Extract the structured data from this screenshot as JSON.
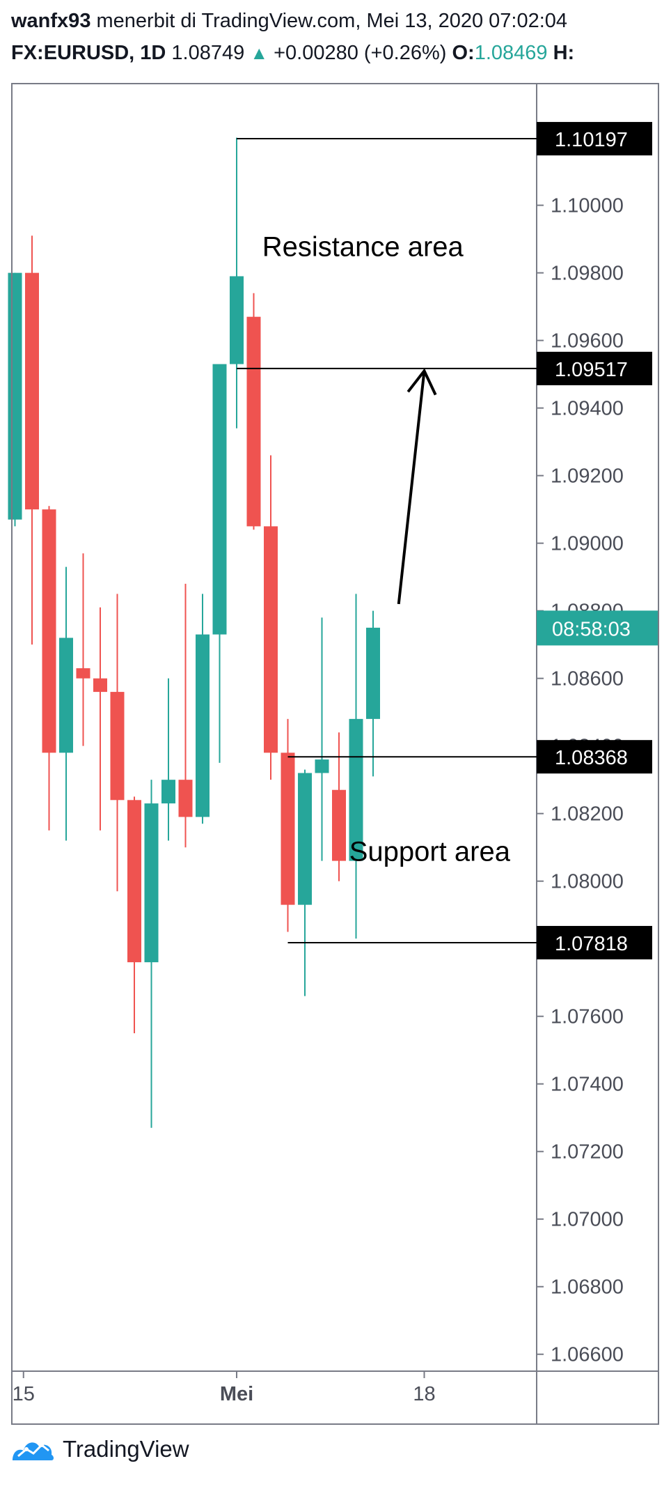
{
  "header": {
    "author": "wanfx93",
    "published_on": "menerbit di TradingView.com, Mei 13, 2020 07:02:04",
    "symbol": "FX:EURUSD, 1D",
    "last_price": "1.08749",
    "change": "+0.00280 (+0.26%)",
    "open_label": "O:",
    "open_value": "1.08469",
    "high_label": "H:"
  },
  "footer": {
    "brand": "TradingView"
  },
  "colors": {
    "up": "#26a69a",
    "down": "#ef5350",
    "frame": "#787b86",
    "axis_text": "#4a4d57",
    "label_bg": "#000000",
    "countdown_bg": "#26a69a"
  },
  "chart_data": {
    "type": "candlestick",
    "timeframe": "1D",
    "ylim": [
      1.0655,
      1.1036
    ],
    "y_ticks": [
      "1.06600",
      "1.06800",
      "1.07000",
      "1.07200",
      "1.07400",
      "1.07600",
      "1.07800",
      "1.08000",
      "1.08200",
      "1.08400",
      "1.08600",
      "1.08800",
      "1.09000",
      "1.09200",
      "1.09400",
      "1.09600",
      "1.09800",
      "1.10000"
    ],
    "y_tick_values": [
      1.066,
      1.068,
      1.07,
      1.072,
      1.074,
      1.076,
      1.078,
      1.08,
      1.082,
      1.084,
      1.086,
      1.088,
      1.09,
      1.092,
      1.094,
      1.096,
      1.098,
      1.1
    ],
    "x_labels": [
      {
        "label": "15",
        "index": 0.5
      },
      {
        "label": "Mei",
        "index": 13,
        "bold": true
      },
      {
        "label": "18",
        "index": 24
      }
    ],
    "candles": [
      {
        "open": 1.0907,
        "high": 1.098,
        "low": 1.0905,
        "close": 1.098
      },
      {
        "open": 1.098,
        "high": 1.0991,
        "low": 1.087,
        "close": 1.091
      },
      {
        "open": 1.091,
        "high": 1.0911,
        "low": 1.0815,
        "close": 1.0838
      },
      {
        "open": 1.0838,
        "high": 1.0893,
        "low": 1.0812,
        "close": 1.0872
      },
      {
        "open": 1.0863,
        "high": 1.0897,
        "low": 1.084,
        "close": 1.086
      },
      {
        "open": 1.086,
        "high": 1.0881,
        "low": 1.0815,
        "close": 1.0856
      },
      {
        "open": 1.0856,
        "high": 1.0885,
        "low": 1.0797,
        "close": 1.0824
      },
      {
        "open": 1.0824,
        "high": 1.0825,
        "low": 1.0755,
        "close": 1.0776
      },
      {
        "open": 1.0776,
        "high": 1.083,
        "low": 1.0727,
        "close": 1.0823
      },
      {
        "open": 1.0823,
        "high": 1.086,
        "low": 1.0812,
        "close": 1.083
      },
      {
        "open": 1.083,
        "high": 1.0888,
        "low": 1.081,
        "close": 1.0819
      },
      {
        "open": 1.0819,
        "high": 1.0885,
        "low": 1.0817,
        "close": 1.0873
      },
      {
        "open": 1.0873,
        "high": 1.0952,
        "low": 1.0835,
        "close": 1.0953
      },
      {
        "open": 1.0953,
        "high": 1.102,
        "low": 1.0934,
        "close": 1.0979
      },
      {
        "open": 1.0967,
        "high": 1.0974,
        "low": 1.0904,
        "close": 1.0905
      },
      {
        "open": 1.0905,
        "high": 1.0926,
        "low": 1.083,
        "close": 1.0838
      },
      {
        "open": 1.0838,
        "high": 1.0848,
        "low": 1.0785,
        "close": 1.0793
      },
      {
        "open": 1.0793,
        "high": 1.0833,
        "low": 1.0766,
        "close": 1.0832
      },
      {
        "open": 1.0832,
        "high": 1.0878,
        "low": 1.0806,
        "close": 1.0836
      },
      {
        "open": 1.0827,
        "high": 1.0844,
        "low": 1.08,
        "close": 1.0806
      },
      {
        "open": 1.0806,
        "high": 1.0885,
        "low": 1.0783,
        "close": 1.0848
      },
      {
        "open": 1.0848,
        "high": 1.088,
        "low": 1.0831,
        "close": 1.0875
      }
    ],
    "price_labels": [
      {
        "text": "1.10197",
        "value": 1.10197,
        "x0_index": 13
      },
      {
        "text": "1.09517",
        "value": 1.09517,
        "x0_index": 13
      },
      {
        "text": "1.08368",
        "value": 1.08368,
        "x0_index": 16
      },
      {
        "text": "1.07818",
        "value": 1.07818,
        "x0_index": 16
      }
    ],
    "countdown": {
      "text": "08:58:03",
      "value": 1.08749
    },
    "annotations": [
      {
        "text": "Resistance area",
        "price": 1.0985,
        "index": 14.5
      },
      {
        "text": "Support area",
        "price": 1.0806,
        "index": 19.6
      }
    ],
    "arrow": {
      "from": {
        "index": 22.5,
        "price": 1.0882
      },
      "to": {
        "index": 24,
        "price": 1.0951
      }
    }
  }
}
